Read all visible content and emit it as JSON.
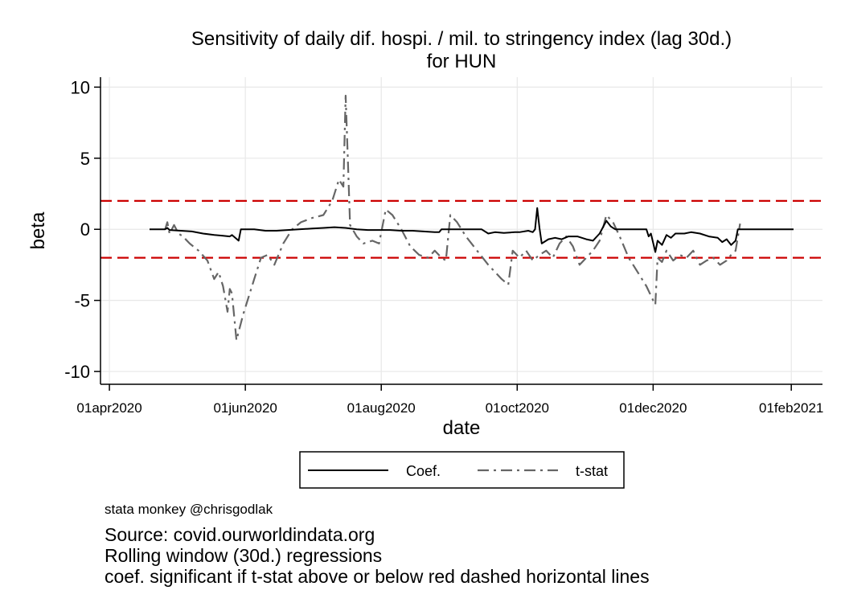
{
  "chart_data": {
    "type": "line",
    "title": [
      "Sensitivity of daily dif. hospi. / mil. to stringency index (lag 30d.)",
      "for HUN"
    ],
    "xlabel": "date",
    "ylabel": "beta",
    "x_ticks": [
      "2020-04-01",
      "2020-06-01",
      "2020-08-01",
      "2020-10-01",
      "2020-12-01",
      "2021-02-01"
    ],
    "x_tick_labels": [
      "01apr2020",
      "01jun2020",
      "01aug2020",
      "01oct2020",
      "01dec2020",
      "01feb2021"
    ],
    "xlim": [
      "2020-03-28",
      "2021-02-15"
    ],
    "y_ticks": [
      10,
      5,
      0,
      -5,
      -10
    ],
    "y_tick_labels": [
      "10",
      "5",
      "0",
      "-5",
      "-10"
    ],
    "ylim": [
      -10.9,
      10.7
    ],
    "grid": true,
    "reference_lines": [
      {
        "y": 2,
        "color": "#cc0000",
        "style": "dashed"
      },
      {
        "y": -2,
        "color": "#cc0000",
        "style": "dashed"
      }
    ],
    "legend": {
      "position": "bottom",
      "entries": [
        "Coef.",
        "t-stat"
      ]
    },
    "series": [
      {
        "name": "Coef.",
        "color": "#000000",
        "style": "solid",
        "points": [
          [
            "2020-04-19",
            0.0
          ],
          [
            "2020-04-26",
            0.0
          ],
          [
            "2020-04-27",
            0.1
          ],
          [
            "2020-04-28",
            -0.05
          ],
          [
            "2020-05-03",
            -0.1
          ],
          [
            "2020-05-08",
            -0.15
          ],
          [
            "2020-05-13",
            -0.3
          ],
          [
            "2020-05-18",
            -0.4
          ],
          [
            "2020-05-22",
            -0.45
          ],
          [
            "2020-05-25",
            -0.5
          ],
          [
            "2020-05-26",
            -0.4
          ],
          [
            "2020-05-29",
            -0.8
          ],
          [
            "2020-05-30",
            0.0
          ],
          [
            "2020-06-05",
            0.0
          ],
          [
            "2020-06-10",
            -0.1
          ],
          [
            "2020-06-15",
            -0.1
          ],
          [
            "2020-06-20",
            -0.05
          ],
          [
            "2020-06-25",
            0.0
          ],
          [
            "2020-07-01",
            0.05
          ],
          [
            "2020-07-06",
            0.1
          ],
          [
            "2020-07-11",
            0.15
          ],
          [
            "2020-07-16",
            0.1
          ],
          [
            "2020-07-21",
            0.0
          ],
          [
            "2020-07-26",
            -0.05
          ],
          [
            "2020-08-01",
            -0.05
          ],
          [
            "2020-08-05",
            -0.05
          ],
          [
            "2020-08-10",
            -0.1
          ],
          [
            "2020-08-15",
            -0.1
          ],
          [
            "2020-08-20",
            -0.15
          ],
          [
            "2020-08-25",
            -0.2
          ],
          [
            "2020-08-27",
            -0.2
          ],
          [
            "2020-08-28",
            0.0
          ],
          [
            "2020-09-15",
            0.0
          ],
          [
            "2020-09-18",
            -0.3
          ],
          [
            "2020-09-21",
            -0.2
          ],
          [
            "2020-09-25",
            -0.25
          ],
          [
            "2020-09-30",
            -0.2
          ],
          [
            "2020-10-02",
            -0.2
          ],
          [
            "2020-10-06",
            -0.1
          ],
          [
            "2020-10-08",
            -0.2
          ],
          [
            "2020-10-09",
            0.0
          ],
          [
            "2020-10-10",
            1.5
          ],
          [
            "2020-10-11",
            0.1
          ],
          [
            "2020-10-12",
            -1.0
          ],
          [
            "2020-10-15",
            -0.7
          ],
          [
            "2020-10-18",
            -0.6
          ],
          [
            "2020-10-21",
            -0.7
          ],
          [
            "2020-10-24",
            -0.5
          ],
          [
            "2020-10-28",
            -0.5
          ],
          [
            "2020-11-01",
            -0.7
          ],
          [
            "2020-11-04",
            -0.8
          ],
          [
            "2020-11-07",
            -0.3
          ],
          [
            "2020-11-09",
            0.3
          ],
          [
            "2020-11-10",
            0.6
          ],
          [
            "2020-11-12",
            0.2
          ],
          [
            "2020-11-14",
            0.0
          ],
          [
            "2020-11-28",
            0.0
          ],
          [
            "2020-11-29",
            -0.5
          ],
          [
            "2020-11-30",
            -0.3
          ],
          [
            "2020-12-02",
            -1.6
          ],
          [
            "2020-12-03",
            -0.8
          ],
          [
            "2020-12-05",
            -1.1
          ],
          [
            "2020-12-07",
            -0.4
          ],
          [
            "2020-12-09",
            -0.6
          ],
          [
            "2020-12-11",
            -0.3
          ],
          [
            "2020-12-15",
            -0.3
          ],
          [
            "2020-12-18",
            -0.2
          ],
          [
            "2020-12-22",
            -0.3
          ],
          [
            "2020-12-26",
            -0.5
          ],
          [
            "2020-12-30",
            -0.6
          ],
          [
            "2021-01-01",
            -0.9
          ],
          [
            "2021-01-03",
            -0.7
          ],
          [
            "2021-01-05",
            -1.1
          ],
          [
            "2021-01-07",
            -0.8
          ],
          [
            "2021-01-08",
            0.0
          ],
          [
            "2021-02-02",
            0.0
          ]
        ]
      },
      {
        "name": "t-stat",
        "color": "#666666",
        "style": "dashdot",
        "points": [
          [
            "2020-04-26",
            0.0
          ],
          [
            "2020-04-27",
            0.5
          ],
          [
            "2020-04-28",
            -0.3
          ],
          [
            "2020-04-30",
            0.3
          ],
          [
            "2020-05-02",
            -0.3
          ],
          [
            "2020-05-04",
            -0.5
          ],
          [
            "2020-05-07",
            -1.0
          ],
          [
            "2020-05-11",
            -1.5
          ],
          [
            "2020-05-15",
            -2.2
          ],
          [
            "2020-05-18",
            -3.5
          ],
          [
            "2020-05-20",
            -3.0
          ],
          [
            "2020-05-22",
            -4.0
          ],
          [
            "2020-05-24",
            -5.8
          ],
          [
            "2020-05-25",
            -4.2
          ],
          [
            "2020-05-26",
            -4.5
          ],
          [
            "2020-05-28",
            -7.8
          ],
          [
            "2020-05-31",
            -6.0
          ],
          [
            "2020-06-05",
            -3.5
          ],
          [
            "2020-06-08",
            -2.0
          ],
          [
            "2020-06-11",
            -1.8
          ],
          [
            "2020-06-14",
            -2.5
          ],
          [
            "2020-06-18",
            -1.0
          ],
          [
            "2020-06-22",
            0.0
          ],
          [
            "2020-06-26",
            0.5
          ],
          [
            "2020-07-01",
            0.8
          ],
          [
            "2020-07-06",
            1.0
          ],
          [
            "2020-07-10",
            2.0
          ],
          [
            "2020-07-13",
            3.5
          ],
          [
            "2020-07-15",
            3.0
          ],
          [
            "2020-07-16",
            9.4
          ],
          [
            "2020-07-17",
            5.0
          ],
          [
            "2020-07-18",
            0.3
          ],
          [
            "2020-07-21",
            -0.5
          ],
          [
            "2020-07-24",
            -1.0
          ],
          [
            "2020-07-28",
            -0.8
          ],
          [
            "2020-07-31",
            -1.0
          ],
          [
            "2020-08-03",
            1.4
          ],
          [
            "2020-08-06",
            1.0
          ],
          [
            "2020-08-10",
            0.0
          ],
          [
            "2020-08-14",
            -1.2
          ],
          [
            "2020-08-18",
            -1.8
          ],
          [
            "2020-08-22",
            -2.0
          ],
          [
            "2020-08-25",
            -1.5
          ],
          [
            "2020-08-28",
            -2.0
          ],
          [
            "2020-08-30",
            -2.2
          ],
          [
            "2020-09-01",
            1.0
          ],
          [
            "2020-09-04",
            0.5
          ],
          [
            "2020-09-08",
            -0.5
          ],
          [
            "2020-09-13",
            -1.5
          ],
          [
            "2020-09-18",
            -2.5
          ],
          [
            "2020-09-24",
            -3.5
          ],
          [
            "2020-09-27",
            -3.9
          ],
          [
            "2020-09-29",
            -1.5
          ],
          [
            "2020-10-02",
            -2.0
          ],
          [
            "2020-10-05",
            -1.5
          ],
          [
            "2020-10-08",
            -2.2
          ],
          [
            "2020-10-11",
            -1.8
          ],
          [
            "2020-10-14",
            -1.5
          ],
          [
            "2020-10-17",
            -2.0
          ],
          [
            "2020-10-20",
            -1.0
          ],
          [
            "2020-10-23",
            -0.5
          ],
          [
            "2020-10-26",
            -1.2
          ],
          [
            "2020-10-29",
            -2.5
          ],
          [
            "2020-11-01",
            -2.0
          ],
          [
            "2020-11-04",
            -1.5
          ],
          [
            "2020-11-07",
            -0.8
          ],
          [
            "2020-11-10",
            1.0
          ],
          [
            "2020-11-13",
            0.5
          ],
          [
            "2020-11-16",
            -0.5
          ],
          [
            "2020-11-20",
            -2.0
          ],
          [
            "2020-11-24",
            -3.0
          ],
          [
            "2020-11-28",
            -4.0
          ],
          [
            "2020-12-01",
            -5.0
          ],
          [
            "2020-12-02",
            -5.3
          ],
          [
            "2020-12-03",
            -2.0
          ],
          [
            "2020-12-05",
            -2.3
          ],
          [
            "2020-12-07",
            -1.5
          ],
          [
            "2020-12-10",
            -2.2
          ],
          [
            "2020-12-13",
            -1.8
          ],
          [
            "2020-12-16",
            -2.0
          ],
          [
            "2020-12-19",
            -1.5
          ],
          [
            "2020-12-22",
            -2.5
          ],
          [
            "2020-12-25",
            -2.2
          ],
          [
            "2020-12-28",
            -2.0
          ],
          [
            "2020-12-31",
            -2.5
          ],
          [
            "2021-01-03",
            -2.2
          ],
          [
            "2021-01-05",
            -1.8
          ],
          [
            "2021-01-07",
            -1.5
          ],
          [
            "2021-01-09",
            0.4
          ]
        ]
      }
    ]
  },
  "caption": {
    "credit": "stata monkey @chrisgodlak",
    "lines": [
      "Source: covid.ourworldindata.org",
      "Rolling window (30d.) regressions",
      "coef. significant if t-stat above or below red dashed horizontal lines"
    ]
  }
}
